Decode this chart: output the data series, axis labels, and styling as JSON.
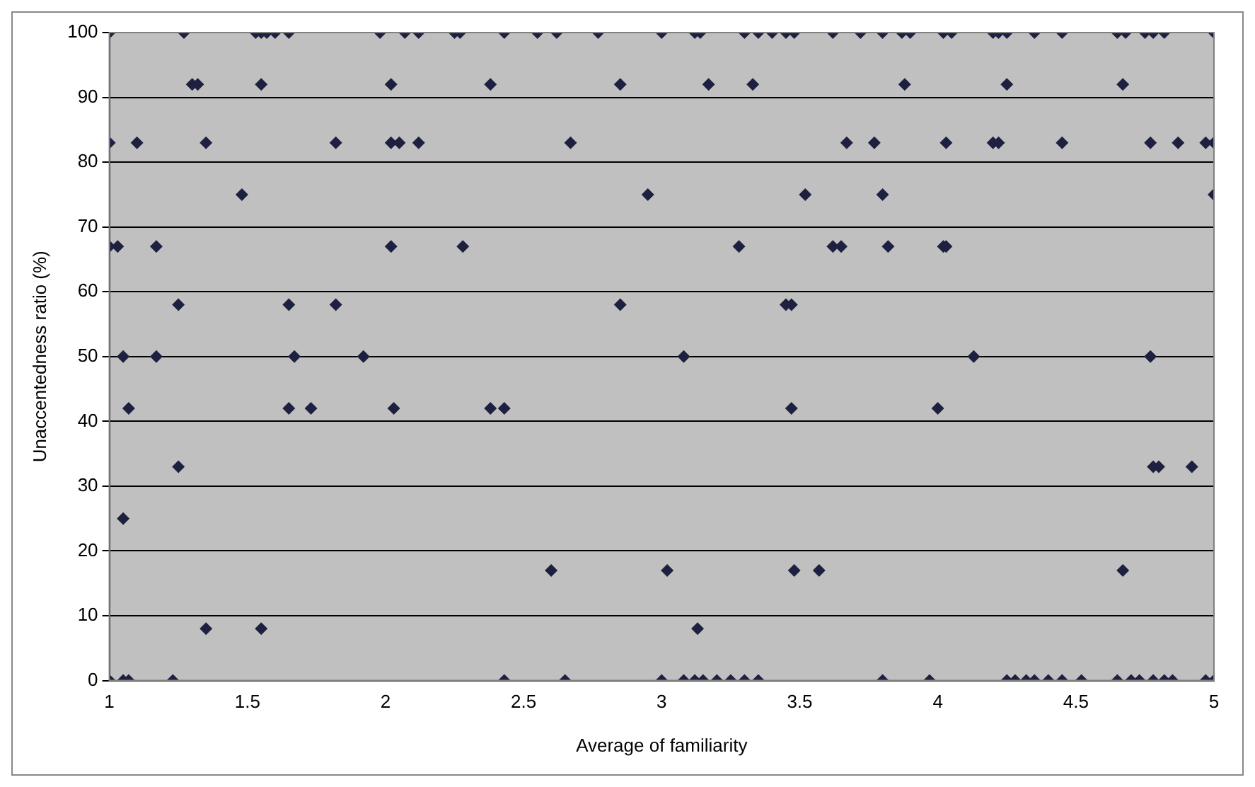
{
  "chart_data": {
    "type": "scatter",
    "xlabel": "Average of familiarity",
    "ylabel": "Unaccentedness ratio (%)",
    "xlim": [
      1,
      5
    ],
    "xticks": [
      1,
      1.5,
      2,
      2.5,
      3,
      3.5,
      4,
      4.5,
      5
    ],
    "ylim": [
      0,
      100
    ],
    "yticks": [
      0,
      10,
      20,
      30,
      40,
      50,
      60,
      70,
      80,
      90,
      100
    ],
    "grid": "y",
    "marker": "diamond",
    "legend": false,
    "x": [
      1.0,
      1.27,
      1.53,
      1.55,
      1.57,
      1.6,
      1.65,
      1.98,
      2.07,
      2.12,
      2.25,
      2.27,
      2.43,
      2.55,
      2.62,
      2.77,
      3.0,
      3.12,
      3.14,
      3.3,
      3.35,
      3.4,
      3.45,
      3.48,
      3.62,
      3.72,
      3.8,
      3.87,
      3.9,
      4.02,
      4.05,
      4.2,
      4.22,
      4.25,
      4.35,
      4.45,
      4.65,
      4.68,
      4.75,
      4.78,
      4.82,
      5.0,
      1.3,
      1.32,
      1.55,
      2.02,
      2.38,
      2.85,
      3.17,
      3.33,
      3.88,
      4.25,
      4.67,
      1.0,
      1.1,
      1.35,
      1.82,
      2.02,
      2.05,
      2.12,
      2.67,
      3.67,
      3.77,
      4.03,
      4.2,
      4.22,
      4.45,
      4.77,
      4.87,
      4.97,
      5.0,
      1.48,
      2.95,
      3.52,
      3.8,
      5.0,
      1.0,
      1.03,
      1.17,
      2.02,
      2.28,
      3.28,
      3.62,
      3.65,
      3.82,
      4.02,
      4.03,
      1.25,
      1.65,
      1.82,
      2.85,
      3.45,
      3.47,
      1.05,
      1.17,
      1.67,
      1.92,
      3.08,
      4.13,
      4.77,
      1.07,
      1.65,
      1.73,
      2.03,
      2.38,
      2.43,
      3.47,
      4.0,
      1.25,
      4.78,
      4.8,
      4.92,
      1.05,
      2.6,
      3.02,
      3.48,
      3.57,
      4.67,
      1.35,
      1.55,
      3.13,
      1.0,
      1.05,
      1.07,
      1.23,
      2.43,
      2.65,
      3.0,
      3.08,
      3.12,
      3.15,
      3.2,
      3.25,
      3.3,
      3.35,
      3.8,
      3.97,
      4.25,
      4.28,
      4.32,
      4.35,
      4.4,
      4.45,
      4.52,
      4.65,
      4.7,
      4.73,
      4.78,
      4.82,
      4.85,
      4.97,
      5.0
    ],
    "series": [
      {
        "color": "#1e2040",
        "values": [
          100,
          100,
          100,
          100,
          100,
          100,
          100,
          100,
          100,
          100,
          100,
          100,
          100,
          100,
          100,
          100,
          100,
          100,
          100,
          100,
          100,
          100,
          100,
          100,
          100,
          100,
          100,
          100,
          100,
          100,
          100,
          100,
          100,
          100,
          100,
          100,
          100,
          100,
          100,
          100,
          100,
          100,
          92,
          92,
          92,
          92,
          92,
          92,
          92,
          92,
          92,
          92,
          92,
          83,
          83,
          83,
          83,
          83,
          83,
          83,
          83,
          83,
          83,
          83,
          83,
          83,
          83,
          83,
          83,
          83,
          83,
          75,
          75,
          75,
          75,
          75,
          67,
          67,
          67,
          67,
          67,
          67,
          67,
          67,
          67,
          67,
          67,
          58,
          58,
          58,
          58,
          58,
          58,
          50,
          50,
          50,
          50,
          50,
          50,
          50,
          42,
          42,
          42,
          42,
          42,
          42,
          42,
          42,
          33,
          33,
          33,
          33,
          25,
          17,
          17,
          17,
          17,
          17,
          8,
          8,
          8,
          0,
          0,
          0,
          0,
          0,
          0,
          0,
          0,
          0,
          0,
          0,
          0,
          0,
          0,
          0,
          0,
          0,
          0,
          0,
          0,
          0,
          0,
          0,
          0,
          0,
          0,
          0,
          0,
          0,
          0,
          0
        ]
      }
    ]
  }
}
